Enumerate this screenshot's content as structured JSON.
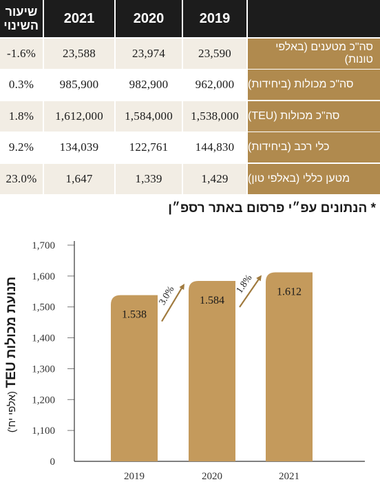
{
  "table": {
    "header": {
      "change": "שיעור השינוי",
      "years": [
        "2021",
        "2020",
        "2019"
      ]
    },
    "rows": [
      {
        "label": "סה\"כ מטענים (באלפי טונות)",
        "change": "-1.6%",
        "v2021": "23,588",
        "v2020": "23,974",
        "v2019": "23,590"
      },
      {
        "label": "סה\"כ מכולות (ביחידות)",
        "change": "0.3%",
        "v2021": "985,900",
        "v2020": "982,900",
        "v2019": "962,000"
      },
      {
        "label": "סה\"כ מכולות (TEU)",
        "change": "1.8%",
        "v2021": "1,612,000",
        "v2020": "1,584,000",
        "v2019": "1,538,000"
      },
      {
        "label": "כלי רכב (ביחידות)",
        "change": "9.2%",
        "v2021": "134,039",
        "v2020": "122,761",
        "v2019": "144,830"
      },
      {
        "label": "מטען כללי (באלפי טון)",
        "change": "23.0%",
        "v2021": "1,647",
        "v2020": "1,339",
        "v2019": "1,429"
      }
    ]
  },
  "note": "* הנתונים עפ״י פרסום באתר רספ״ן",
  "colors": {
    "label_bg": "#b08a4e",
    "cell_light": "#f2ede4",
    "cell_white": "#ffffff",
    "header_bg": "#1c1c1c",
    "bar": "#c49a5c"
  },
  "chart_data": {
    "type": "bar",
    "ylabel_main": "תנועת מכולות TEU",
    "ylabel_sub": "(אלפי יח')",
    "categories": [
      "2019",
      "2020",
      "2021"
    ],
    "values": [
      1538,
      1584,
      1612
    ],
    "value_labels": [
      "1.538",
      "1.584",
      "1.612"
    ],
    "growth": [
      "3.0%",
      "1.8%"
    ],
    "yticks": [
      0,
      1100,
      1200,
      1300,
      1400,
      1500,
      1600,
      1700
    ],
    "ytick_labels": [
      "0",
      "1,100",
      "1,200",
      "1,300",
      "1,400",
      "1,500",
      "1,600",
      "1,700"
    ],
    "ylim": [
      1000,
      1700
    ],
    "axis_break": true,
    "grid": false
  }
}
